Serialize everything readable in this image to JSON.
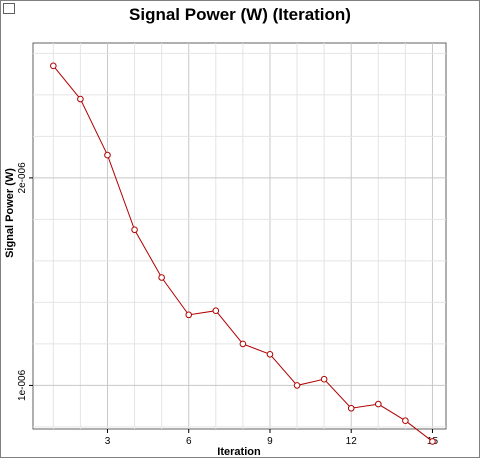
{
  "window": {
    "title_icon": "chart-window-icon"
  },
  "chart_data": {
    "type": "line",
    "title": "Signal Power (W) (Iteration)",
    "xlabel": "Iteration",
    "ylabel": "Signal Power (W)",
    "xlim": [
      0.25,
      15.5
    ],
    "ylim": [
      7.9e-07,
      2.65e-06
    ],
    "x_ticks": [
      3,
      6,
      9,
      12,
      15
    ],
    "x_tick_labels": [
      "3",
      "6",
      "9",
      "12",
      "15"
    ],
    "y_ticks": [
      1e-06,
      2e-06
    ],
    "y_tick_labels": [
      "1e-006",
      "2e-006"
    ],
    "grid": true,
    "legend": "none",
    "series": [
      {
        "color": "#b00000",
        "marker": "circle",
        "x": [
          1,
          2,
          3,
          4,
          5,
          6,
          7,
          8,
          9,
          10,
          11,
          12,
          13,
          14,
          15
        ],
        "y": [
          2.54e-06,
          2.38e-06,
          2.11e-06,
          1.75e-06,
          1.52e-06,
          1.34e-06,
          1.36e-06,
          1.2e-06,
          1.15e-06,
          1e-06,
          1.03e-06,
          8.9e-07,
          9.1e-07,
          8.3e-07,
          7.3e-07
        ]
      }
    ]
  }
}
